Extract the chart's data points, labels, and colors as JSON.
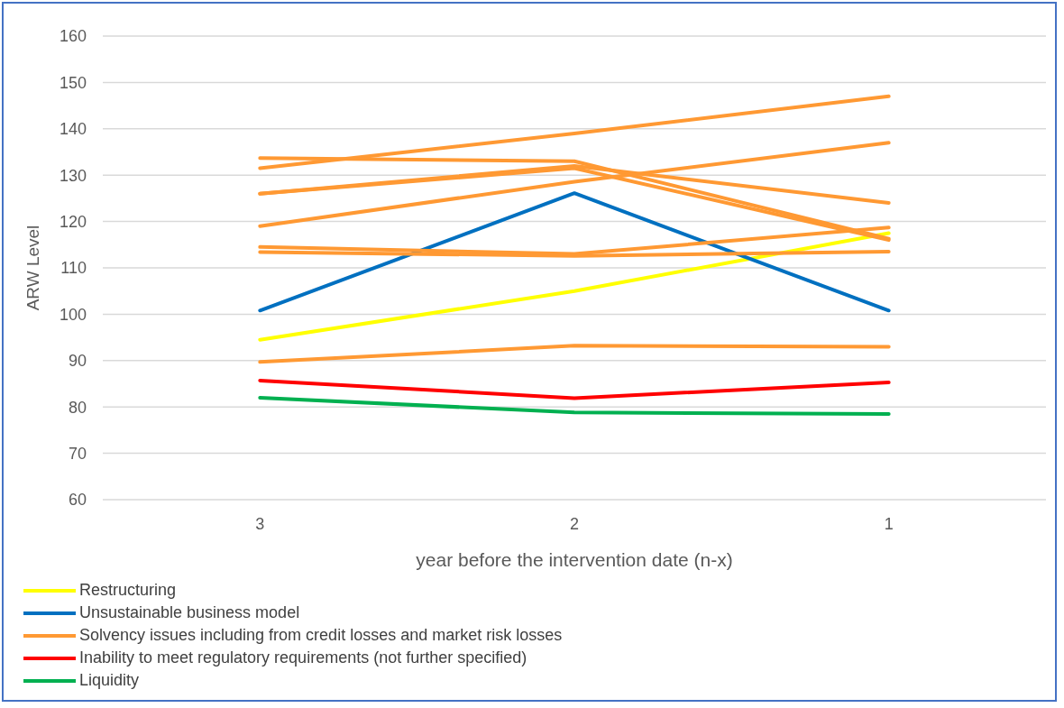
{
  "chart_data": {
    "type": "line",
    "xlabel": "year before the intervention date (n-x)",
    "ylabel": "ARW Level",
    "categories": [
      "3",
      "2",
      "1"
    ],
    "ylim": [
      60,
      160
    ],
    "yticks": [
      60,
      70,
      80,
      90,
      100,
      110,
      120,
      130,
      140,
      150,
      160
    ],
    "grid": "y",
    "legend": "bottom",
    "marker": "none",
    "line_style": "solid",
    "series": [
      {
        "name": "Restructuring",
        "color": "#ffff00",
        "values": [
          94.5,
          105,
          117.5
        ]
      },
      {
        "name": "Unsustainable business model",
        "color": "#0070c0",
        "values": [
          100.8,
          126.1,
          100.8
        ]
      },
      {
        "name": "Solvency issues including from credit losses and market risk losses",
        "color": "#ff9933",
        "values": [
          131.5,
          139,
          147
        ]
      },
      {
        "color": "#ff9933",
        "values": [
          133.7,
          133,
          116.3
        ]
      },
      {
        "color": "#ff9933",
        "values": [
          126,
          132,
          124
        ]
      },
      {
        "color": "#ff9933",
        "values": [
          126,
          131.5,
          116
        ]
      },
      {
        "color": "#ff9933",
        "values": [
          119,
          128.6,
          137
        ]
      },
      {
        "color": "#ff9933",
        "values": [
          114.5,
          113,
          118.7
        ]
      },
      {
        "color": "#ff9933",
        "values": [
          113.4,
          112.6,
          113.5
        ]
      },
      {
        "color": "#ff9933",
        "values": [
          89.7,
          93.2,
          93
        ]
      },
      {
        "name": "Inability to meet regulatory requirements (not further specified)",
        "color": "#ff0000",
        "values": [
          85.7,
          81.9,
          85.3
        ]
      },
      {
        "name": "Liquidity",
        "color": "#00b050",
        "values": [
          82,
          78.8,
          78.5
        ]
      }
    ]
  }
}
